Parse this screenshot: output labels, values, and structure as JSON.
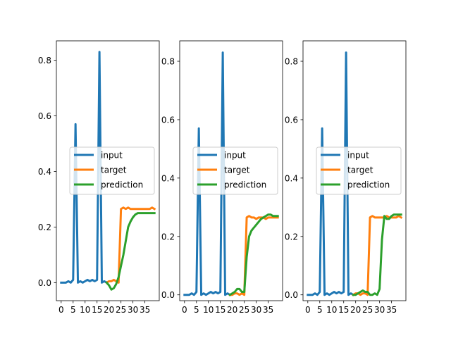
{
  "chart_data": [
    {
      "type": "line",
      "xlim": [
        -2,
        41
      ],
      "ylim": [
        -0.065,
        0.87
      ],
      "xticks": [
        0,
        5,
        10,
        15,
        20,
        25,
        30,
        35
      ],
      "xtick_labels": [
        "0",
        "5",
        "10",
        "15",
        "20",
        "25",
        "30",
        "35"
      ],
      "yticks": [
        0.0,
        0.2,
        0.4,
        0.6,
        0.8
      ],
      "ytick_labels": [
        "0.0",
        "0.2",
        "0.4",
        "0.6",
        "0.8"
      ],
      "legend": {
        "placement": "center-left",
        "entries": [
          "input",
          "target",
          "prediction"
        ]
      },
      "series": [
        {
          "name": "input",
          "color": "#1f77b4",
          "x": [
            0,
            1,
            2,
            3,
            4,
            5,
            6,
            7,
            8,
            9,
            10,
            11,
            12,
            13,
            14,
            15,
            16,
            17,
            18,
            19
          ],
          "y": [
            0.0,
            0.0,
            0.0,
            0.005,
            0.0,
            0.01,
            0.57,
            0.0,
            0.005,
            0.0,
            0.005,
            0.01,
            0.005,
            0.01,
            0.005,
            0.01,
            0.83,
            0.0,
            0.005,
            0.0
          ]
        },
        {
          "name": "target",
          "color": "#ff7f0e",
          "x": [
            19,
            20,
            21,
            22,
            23,
            24,
            25,
            26,
            27,
            28,
            29,
            30,
            31,
            32,
            33,
            34,
            35,
            36,
            37,
            38,
            39
          ],
          "y": [
            0.0,
            0.005,
            0.005,
            0.01,
            0.005,
            0.0,
            0.265,
            0.27,
            0.265,
            0.27,
            0.265,
            0.265,
            0.265,
            0.265,
            0.265,
            0.265,
            0.265,
            0.265,
            0.265,
            0.27,
            0.265
          ]
        },
        {
          "name": "prediction",
          "color": "#2ca02c",
          "x": [
            19,
            20,
            21,
            22,
            23,
            24,
            25,
            26,
            27,
            28,
            29,
            30,
            31,
            32,
            33,
            34,
            35,
            36,
            37,
            38,
            39
          ],
          "y": [
            0.0,
            -0.01,
            -0.025,
            -0.02,
            -0.005,
            0.02,
            0.06,
            0.1,
            0.15,
            0.2,
            0.22,
            0.235,
            0.245,
            0.25,
            0.25,
            0.25,
            0.25,
            0.25,
            0.25,
            0.25,
            0.25
          ]
        }
      ]
    },
    {
      "type": "line",
      "xlim": [
        -2,
        41
      ],
      "ylim": [
        -0.02,
        0.87
      ],
      "xticks": [
        0,
        5,
        10,
        15,
        20,
        25,
        30,
        35
      ],
      "xtick_labels": [
        "0",
        "5",
        "10",
        "15",
        "20",
        "25",
        "30",
        "35"
      ],
      "yticks": [
        0.0,
        0.2,
        0.4,
        0.6,
        0.8
      ],
      "ytick_labels": [
        "0.0",
        "0.2",
        "0.4",
        "0.6",
        "0.8"
      ],
      "legend": {
        "placement": "center-left",
        "entries": [
          "input",
          "target",
          "prediction"
        ]
      },
      "series": [
        {
          "name": "input",
          "color": "#1f77b4",
          "x": [
            0,
            1,
            2,
            3,
            4,
            5,
            6,
            7,
            8,
            9,
            10,
            11,
            12,
            13,
            14,
            15,
            16,
            17,
            18,
            19
          ],
          "y": [
            0.0,
            0.0,
            0.0,
            0.005,
            0.0,
            0.01,
            0.57,
            0.0,
            0.005,
            0.0,
            0.005,
            0.01,
            0.005,
            0.01,
            0.005,
            0.01,
            0.83,
            0.0,
            0.005,
            0.0
          ]
        },
        {
          "name": "target",
          "color": "#ff7f0e",
          "x": [
            19,
            20,
            21,
            22,
            23,
            24,
            25,
            26,
            27,
            28,
            29,
            30,
            31,
            32,
            33,
            34,
            35,
            36,
            37,
            38,
            39
          ],
          "y": [
            0.0,
            0.0,
            0.005,
            0.005,
            0.0,
            0.005,
            0.0,
            0.265,
            0.27,
            0.265,
            0.265,
            0.26,
            0.265,
            0.265,
            0.265,
            0.26,
            0.265,
            0.265,
            0.265,
            0.265,
            0.265
          ]
        },
        {
          "name": "prediction",
          "color": "#2ca02c",
          "x": [
            19,
            20,
            21,
            22,
            23,
            24,
            25,
            26,
            27,
            28,
            29,
            30,
            31,
            32,
            33,
            34,
            35,
            36,
            37,
            38,
            39
          ],
          "y": [
            0.0,
            0.005,
            0.01,
            0.02,
            0.02,
            0.01,
            0.01,
            0.13,
            0.2,
            0.22,
            0.23,
            0.24,
            0.25,
            0.26,
            0.265,
            0.27,
            0.275,
            0.275,
            0.27,
            0.27,
            0.27
          ]
        }
      ]
    },
    {
      "type": "line",
      "xlim": [
        -2,
        41
      ],
      "ylim": [
        -0.02,
        0.87
      ],
      "xticks": [
        0,
        5,
        10,
        15,
        20,
        25,
        30,
        35
      ],
      "xtick_labels": [
        "0",
        "5",
        "10",
        "15",
        "20",
        "25",
        "30",
        "35"
      ],
      "yticks": [
        0.0,
        0.2,
        0.4,
        0.6,
        0.8
      ],
      "ytick_labels": [
        "0.0",
        "0.2",
        "0.4",
        "0.6",
        "0.8"
      ],
      "legend": {
        "placement": "center-left",
        "entries": [
          "input",
          "target",
          "prediction"
        ]
      },
      "series": [
        {
          "name": "input",
          "color": "#1f77b4",
          "x": [
            0,
            1,
            2,
            3,
            4,
            5,
            6,
            7,
            8,
            9,
            10,
            11,
            12,
            13,
            14,
            15,
            16,
            17,
            18,
            19
          ],
          "y": [
            0.0,
            0.0,
            0.0,
            0.005,
            0.0,
            0.01,
            0.57,
            0.0,
            0.005,
            0.0,
            0.005,
            0.01,
            0.005,
            0.01,
            0.005,
            0.01,
            0.83,
            0.0,
            0.005,
            0.0
          ]
        },
        {
          "name": "target",
          "color": "#ff7f0e",
          "x": [
            19,
            20,
            21,
            22,
            23,
            24,
            25,
            26,
            27,
            28,
            29,
            30,
            31,
            32,
            33,
            34,
            35,
            36,
            37,
            38,
            39
          ],
          "y": [
            0.0,
            0.005,
            0.005,
            0.0,
            0.005,
            0.005,
            0.0,
            0.265,
            0.27,
            0.265,
            0.265,
            0.265,
            0.265,
            0.265,
            0.27,
            0.265,
            0.265,
            0.265,
            0.265,
            0.27,
            0.265
          ]
        },
        {
          "name": "prediction",
          "color": "#2ca02c",
          "x": [
            19,
            20,
            21,
            22,
            23,
            24,
            25,
            26,
            27,
            28,
            29,
            30,
            31,
            32,
            33,
            34,
            35,
            36,
            37,
            38,
            39
          ],
          "y": [
            0.0,
            0.0,
            0.005,
            0.01,
            0.015,
            0.01,
            0.01,
            0.0,
            0.0,
            0.005,
            0.0,
            0.02,
            0.19,
            0.27,
            0.26,
            0.26,
            0.27,
            0.275,
            0.275,
            0.275,
            0.275
          ]
        }
      ]
    }
  ]
}
